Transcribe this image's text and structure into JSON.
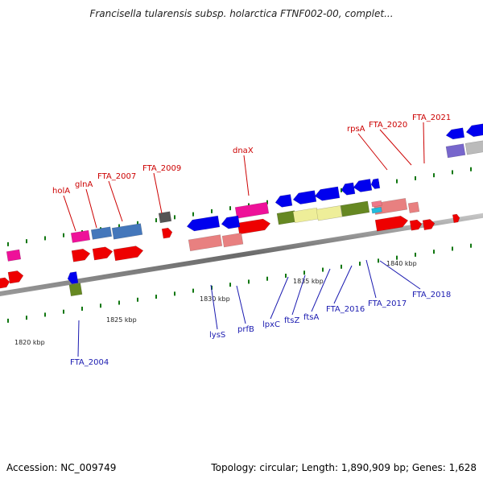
{
  "title": "Francisella tularensis subsp. holarctica FTNF002-00, complet...",
  "footer": {
    "accession": "Accession: NC_009749",
    "summary": "Topology: circular; Length: 1,890,909 bp; Genes: 1,628"
  },
  "scale_labels": [
    "1820 kbp",
    "1825 kbp",
    "1830 kbp",
    "1835 kbp",
    "1840 kbp"
  ],
  "gene_labels_top": [
    "holA",
    "glnA",
    "FTA_2007",
    "FTA_2009",
    "dnaX",
    "rpsA",
    "FTA_2020",
    "FTA_2021"
  ],
  "gene_labels_bottom": [
    "FTA_2004",
    "lysS",
    "prfB",
    "lpxC",
    "ftsZ",
    "ftsA",
    "FTA_2016",
    "FTA_2017",
    "FTA_2018"
  ],
  "colors": {
    "forward_cds": "#ee0000",
    "reverse_cds": "#0000ee",
    "pink_feature": "#ee1199",
    "steel_blue_feature": "#4477bb",
    "salmon_feature": "#e88080",
    "olive_feature": "#668822",
    "khaki_feature": "#eeee99",
    "lavender_feature": "#7766cc",
    "tick_green": "#117711",
    "backbone": "#888888"
  }
}
